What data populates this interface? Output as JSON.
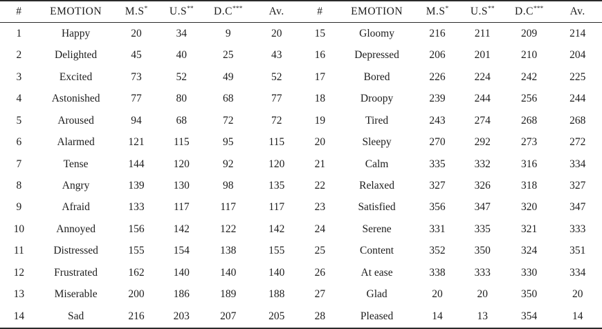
{
  "colors": {
    "background": "#ffffff",
    "text": "#1c1c1c",
    "rule": "#2a2a2a"
  },
  "table": {
    "headers": [
      {
        "label": "#"
      },
      {
        "label": "EMOTION"
      },
      {
        "label": "M.S",
        "sup": "*"
      },
      {
        "label": "U.S",
        "sup": "**"
      },
      {
        "label": "D.C",
        "sup": "***"
      },
      {
        "label": "Av."
      }
    ],
    "left_rows": [
      [
        1,
        "Happy",
        20,
        34,
        9,
        20
      ],
      [
        2,
        "Delighted",
        45,
        40,
        25,
        43
      ],
      [
        3,
        "Excited",
        73,
        52,
        49,
        52
      ],
      [
        4,
        "Astonished",
        77,
        80,
        68,
        77
      ],
      [
        5,
        "Aroused",
        94,
        68,
        72,
        72
      ],
      [
        6,
        "Alarmed",
        121,
        115,
        95,
        115
      ],
      [
        7,
        "Tense",
        144,
        120,
        92,
        120
      ],
      [
        8,
        "Angry",
        139,
        130,
        98,
        135
      ],
      [
        9,
        "Afraid",
        133,
        117,
        117,
        117
      ],
      [
        10,
        "Annoyed",
        156,
        142,
        122,
        142
      ],
      [
        11,
        "Distressed",
        155,
        154,
        138,
        155
      ],
      [
        12,
        "Frustrated",
        162,
        140,
        140,
        140
      ],
      [
        13,
        "Miserable",
        200,
        186,
        189,
        188
      ],
      [
        14,
        "Sad",
        216,
        203,
        207,
        205
      ]
    ],
    "right_rows": [
      [
        15,
        "Gloomy",
        216,
        211,
        209,
        214
      ],
      [
        16,
        "Depressed",
        206,
        201,
        210,
        204
      ],
      [
        17,
        "Bored",
        226,
        224,
        242,
        225
      ],
      [
        18,
        "Droopy",
        239,
        244,
        256,
        244
      ],
      [
        19,
        "Tired",
        243,
        274,
        268,
        268
      ],
      [
        20,
        "Sleepy",
        270,
        292,
        273,
        272
      ],
      [
        21,
        "Calm",
        335,
        332,
        316,
        334
      ],
      [
        22,
        "Relaxed",
        327,
        326,
        318,
        327
      ],
      [
        23,
        "Satisfied",
        356,
        347,
        320,
        347
      ],
      [
        24,
        "Serene",
        331,
        335,
        321,
        333
      ],
      [
        25,
        "Content",
        352,
        350,
        324,
        351
      ],
      [
        26,
        "At ease",
        338,
        333,
        330,
        334
      ],
      [
        27,
        "Glad",
        20,
        20,
        350,
        20
      ],
      [
        28,
        "Pleased",
        14,
        13,
        354,
        14
      ]
    ]
  }
}
